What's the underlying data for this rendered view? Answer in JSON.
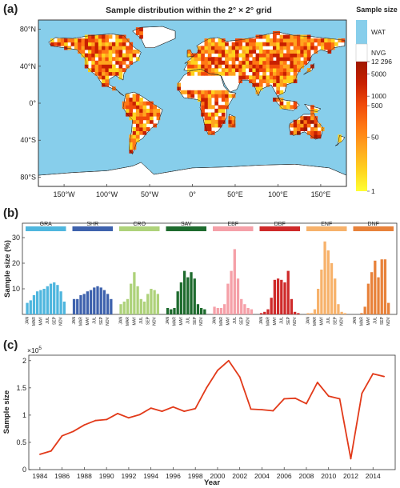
{
  "panels": {
    "a": "(a)",
    "b": "(b)",
    "c": "(c)"
  },
  "chart_data": [
    {
      "type": "heatmap",
      "title": "Sample distribution within the 2° × 2° grid",
      "x_ticks": [
        "150°W",
        "100°W",
        "50°W",
        "0°",
        "50°E",
        "100°E",
        "150°E"
      ],
      "x_tick_values": [
        -150,
        -100,
        -50,
        0,
        50,
        100,
        150
      ],
      "y_ticks": [
        "80°N",
        "40°N",
        "0°",
        "40°S",
        "80°S"
      ],
      "y_tick_values": [
        80,
        40,
        0,
        -40,
        -80
      ],
      "xlim": [
        -180,
        180
      ],
      "ylim": [
        -90,
        90
      ],
      "colorbar": {
        "title": "Sample size",
        "categories": [
          "WAT",
          "NVG"
        ],
        "category_colors": [
          "#87ceeb",
          "#ffffff"
        ],
        "ticks": [
          "12 296",
          "5000",
          "1000",
          "500",
          "50",
          "1"
        ],
        "tick_values": [
          12296,
          5000,
          1000,
          500,
          50,
          1
        ],
        "scale": "log",
        "gradient": [
          "#ffff33",
          "#ffd21e",
          "#ffa51e",
          "#ff7814",
          "#f04a0a",
          "#c82000",
          "#a01800"
        ]
      },
      "ocean_color": "#87ceeb",
      "land_color": "#ffffff"
    },
    {
      "type": "bar",
      "ylabel": "Sample size (%)",
      "ylim": [
        0,
        30
      ],
      "y_ticks": [
        10,
        20,
        30
      ],
      "month_ticks": [
        "JAN",
        "MAR",
        "MAY",
        "JUL",
        "SEP",
        "NOV"
      ],
      "series": [
        {
          "name": "GRA",
          "color": "#4fb6de",
          "values": [
            4.5,
            5.5,
            7.5,
            9,
            9.5,
            10,
            11,
            12,
            12.5,
            11.5,
            9,
            5
          ]
        },
        {
          "name": "SHR",
          "color": "#3e62ad",
          "values": [
            6,
            6,
            7.5,
            8,
            9,
            9.5,
            10.5,
            11,
            10.5,
            9.5,
            8,
            6
          ]
        },
        {
          "name": "CRO",
          "color": "#aed27a",
          "values": [
            4,
            5,
            6,
            12,
            16.5,
            11,
            6,
            5,
            8,
            10,
            9.5,
            8
          ]
        },
        {
          "name": "SAV",
          "color": "#1e6b2e",
          "values": [
            2.5,
            2,
            2.5,
            9,
            12.5,
            17,
            14.5,
            16.5,
            14,
            4,
            2.5,
            2
          ]
        },
        {
          "name": "EBF",
          "color": "#f5a0a8",
          "values": [
            3,
            2.5,
            2.5,
            4,
            12,
            17,
            25.5,
            14,
            6,
            4,
            2.5,
            2
          ]
        },
        {
          "name": "DBF",
          "color": "#cf2a2a",
          "values": [
            0.5,
            1,
            2,
            6.5,
            13.5,
            14,
            13.5,
            12.5,
            17,
            6,
            1,
            0.5
          ]
        },
        {
          "name": "ENF",
          "color": "#f7b26b",
          "values": [
            0.5,
            0.5,
            2,
            10,
            17.5,
            28.5,
            25,
            20,
            14,
            4,
            1,
            0.5
          ]
        },
        {
          "name": "DNF",
          "color": "#e8823a",
          "values": [
            0,
            0,
            0.5,
            3,
            12,
            16.5,
            21,
            14.5,
            21.5,
            21.5,
            4.5,
            0
          ]
        }
      ]
    },
    {
      "type": "line",
      "xlabel": "Year",
      "ylabel": "Sample size",
      "exponent": "×10",
      "exponent_power": "5",
      "xlim": [
        1983,
        2016
      ],
      "ylim": [
        0,
        2.1
      ],
      "x_ticks": [
        1984,
        1986,
        1988,
        1990,
        1992,
        1994,
        1996,
        1998,
        2000,
        2002,
        2004,
        2006,
        2008,
        2010,
        2012,
        2014
      ],
      "y_ticks": [
        "0",
        "0.5",
        "1",
        "1.5",
        "2"
      ],
      "y_tick_values": [
        0,
        0.5,
        1,
        1.5,
        2
      ],
      "color": "#e23a1a",
      "x": [
        1984,
        1985,
        1986,
        1987,
        1988,
        1989,
        1990,
        1991,
        1992,
        1993,
        1994,
        1995,
        1996,
        1997,
        1998,
        1999,
        2000,
        2001,
        2002,
        2003,
        2004,
        2005,
        2006,
        2007,
        2008,
        2009,
        2010,
        2011,
        2012,
        2013,
        2014,
        2015
      ],
      "values": [
        0.28,
        0.34,
        0.62,
        0.7,
        0.82,
        0.9,
        0.92,
        1.03,
        0.95,
        1.01,
        1.13,
        1.07,
        1.15,
        1.07,
        1.12,
        1.5,
        1.82,
        2.0,
        1.7,
        1.11,
        1.1,
        1.08,
        1.3,
        1.31,
        1.21,
        1.6,
        1.35,
        1.3,
        0.2,
        1.4,
        1.76,
        1.71
      ]
    }
  ]
}
